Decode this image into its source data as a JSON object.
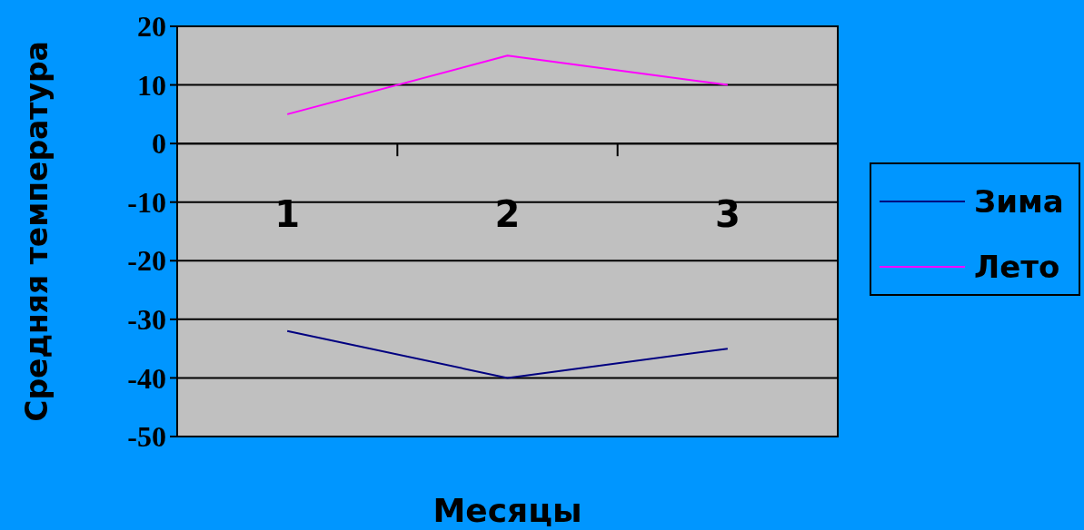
{
  "chart_data": {
    "type": "line",
    "xlabel": "Месяцы",
    "ylabel": "Средняя температура",
    "categories": [
      "1",
      "2",
      "3"
    ],
    "series": [
      {
        "name": "Зима",
        "color": "#000080",
        "values": [
          -32,
          -40,
          -35
        ]
      },
      {
        "name": "Лето",
        "color": "#ff00ff",
        "values": [
          5,
          15,
          10
        ]
      }
    ],
    "ylim": [
      -50,
      20
    ],
    "yticks": [
      -50,
      -40,
      -30,
      -20,
      -10,
      0,
      10,
      20
    ],
    "grid": "y",
    "legend": "right",
    "marker": "none",
    "line_style": "solid"
  }
}
